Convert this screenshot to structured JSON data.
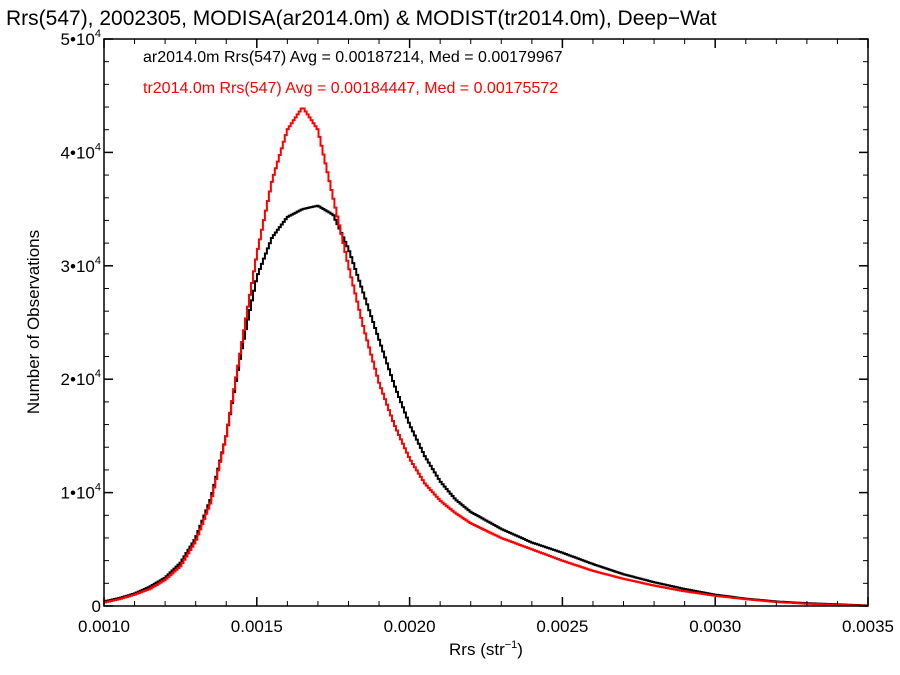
{
  "chart_data": {
    "type": "line",
    "title": "Rrs(547), 2002305, MODISA(ar2014.0m) & MODIST(tr2014.0m), Deep−Wat",
    "xlabel": {
      "main": "Rrs (str",
      "sup": "−1",
      "end": ")"
    },
    "ylabel": "Number of Observations",
    "xlim": [
      0.001,
      0.0035
    ],
    "ylim": [
      0,
      50000
    ],
    "grid": false,
    "x_ticks": [
      {
        "value": 0.001,
        "label": "0.0010"
      },
      {
        "value": 0.0015,
        "label": "0.0015"
      },
      {
        "value": 0.002,
        "label": "0.0020"
      },
      {
        "value": 0.0025,
        "label": "0.0025"
      },
      {
        "value": 0.003,
        "label": "0.0030"
      },
      {
        "value": 0.0035,
        "label": "0.0035"
      }
    ],
    "y_ticks": [
      {
        "value": 0,
        "mant": "0",
        "exp": ""
      },
      {
        "value": 10000,
        "mant": "1•10",
        "exp": "4"
      },
      {
        "value": 20000,
        "mant": "2•10",
        "exp": "4"
      },
      {
        "value": 30000,
        "mant": "3•10",
        "exp": "4"
      },
      {
        "value": 40000,
        "mant": "4•10",
        "exp": "4"
      },
      {
        "value": 50000,
        "mant": "5•10",
        "exp": "4"
      }
    ],
    "series": [
      {
        "name": "ar2014.0m Rrs(547) Avg = 0.00187214, Med = 0.00179967",
        "color": "#000000",
        "x": [
          0.001,
          0.00105,
          0.0011,
          0.00115,
          0.0012,
          0.00125,
          0.0013,
          0.00135,
          0.0014,
          0.00145,
          0.0015,
          0.00155,
          0.0016,
          0.00165,
          0.0017,
          0.00175,
          0.0018,
          0.00185,
          0.0019,
          0.00195,
          0.002,
          0.00205,
          0.0021,
          0.00215,
          0.0022,
          0.0023,
          0.0024,
          0.0025,
          0.0026,
          0.0027,
          0.0028,
          0.0029,
          0.003,
          0.0031,
          0.0032,
          0.0033,
          0.0034,
          0.0035
        ],
        "y": [
          400,
          700,
          1100,
          1700,
          2500,
          3800,
          6000,
          9500,
          15000,
          22500,
          29000,
          32500,
          34300,
          35000,
          35300,
          34500,
          31500,
          27500,
          23500,
          19500,
          16000,
          13200,
          11000,
          9400,
          8300,
          6800,
          5600,
          4700,
          3700,
          2800,
          2100,
          1500,
          1000,
          650,
          400,
          250,
          150,
          50
        ]
      },
      {
        "name": "tr2014.0m Rrs(547) Avg = 0.00184447, Med = 0.00175572",
        "color": "#ff0000",
        "x": [
          0.001,
          0.00105,
          0.0011,
          0.00115,
          0.0012,
          0.00125,
          0.0013,
          0.00135,
          0.0014,
          0.00145,
          0.0015,
          0.00155,
          0.0016,
          0.00165,
          0.0017,
          0.00175,
          0.0018,
          0.00185,
          0.0019,
          0.00195,
          0.002,
          0.00205,
          0.0021,
          0.00215,
          0.0022,
          0.0023,
          0.0024,
          0.0025,
          0.0026,
          0.0027,
          0.0028,
          0.0029,
          0.003,
          0.0031,
          0.0032,
          0.0033,
          0.0034,
          0.0035
        ],
        "y": [
          300,
          600,
          1000,
          1500,
          2300,
          3500,
          5700,
          9200,
          15000,
          23000,
          31000,
          37500,
          42000,
          44000,
          42000,
          36000,
          30000,
          24500,
          19700,
          16000,
          13000,
          10800,
          9300,
          8200,
          7300,
          6000,
          5000,
          4000,
          3100,
          2400,
          1800,
          1300,
          900,
          600,
          350,
          200,
          100,
          30
        ]
      }
    ]
  }
}
